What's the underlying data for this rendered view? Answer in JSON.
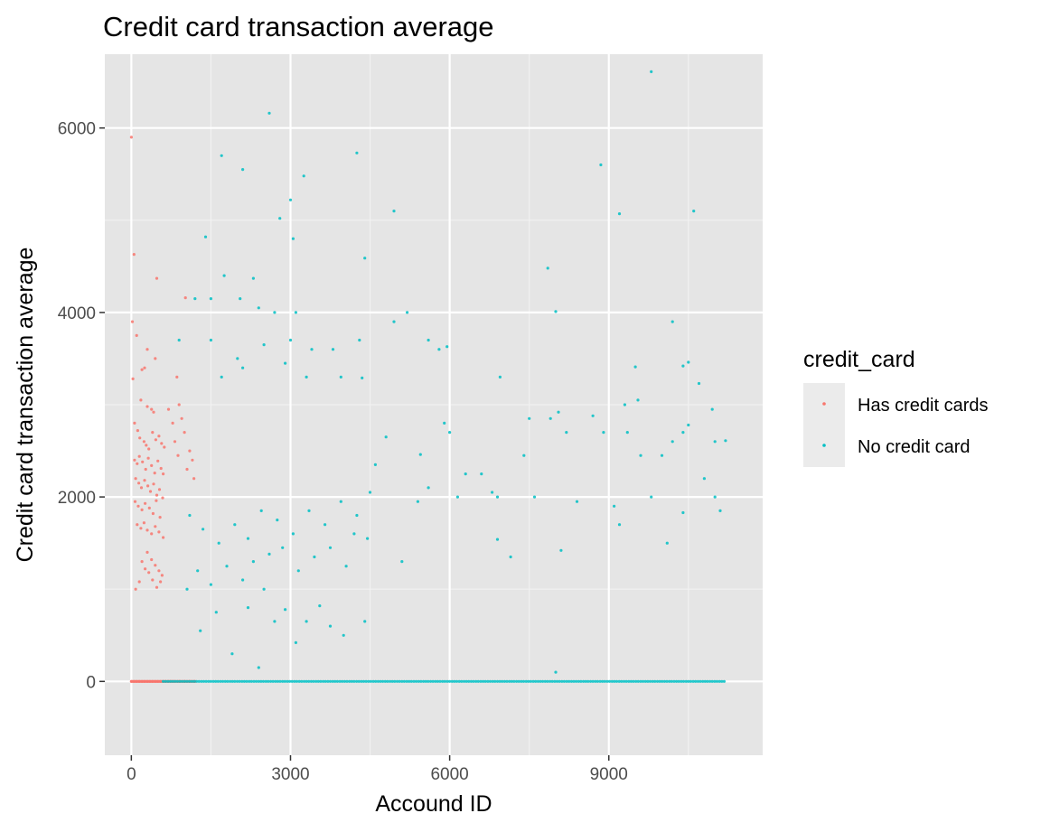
{
  "colors": {
    "panel_background": "#e5e5e5",
    "grid_major": "#ffffff",
    "grid_minor": "#f2f2f2",
    "legend_key_background": "#ebebeb",
    "has_credit_cards": "#f8766d",
    "no_credit_card": "#00bfc4"
  },
  "chart_data": {
    "type": "scatter",
    "title": "Credit card transaction average",
    "xlabel": "Accound ID",
    "ylabel": "Credit card transaction average",
    "xlim": [
      -500,
      11900
    ],
    "ylim": [
      -800,
      6800
    ],
    "x_ticks": [
      0,
      3000,
      6000,
      9000
    ],
    "x_tick_labels": [
      "0",
      "3000",
      "6000",
      "9000"
    ],
    "y_ticks": [
      0,
      2000,
      4000,
      6000
    ],
    "y_tick_labels": [
      "0",
      "2000",
      "4000",
      "6000"
    ],
    "grid": true,
    "legend": {
      "title": "credit_card",
      "placement": "right",
      "entries": [
        "Has credit cards",
        "No credit card"
      ]
    },
    "series": [
      {
        "name": "Has credit cards",
        "color": "#f8766d",
        "points": [
          [
            0,
            5900
          ],
          [
            50,
            4630
          ],
          [
            480,
            4370
          ],
          [
            20,
            3900
          ],
          [
            100,
            3750
          ],
          [
            300,
            3600
          ],
          [
            450,
            3500
          ],
          [
            30,
            3280
          ],
          [
            200,
            3380
          ],
          [
            250,
            3400
          ],
          [
            180,
            3050
          ],
          [
            300,
            2980
          ],
          [
            380,
            2950
          ],
          [
            420,
            2920
          ],
          [
            60,
            2800
          ],
          [
            120,
            2720
          ],
          [
            160,
            2640
          ],
          [
            240,
            2600
          ],
          [
            280,
            2560
          ],
          [
            330,
            2520
          ],
          [
            400,
            2700
          ],
          [
            460,
            2620
          ],
          [
            520,
            2660
          ],
          [
            570,
            2580
          ],
          [
            620,
            2540
          ],
          [
            60,
            2400
          ],
          [
            110,
            2360
          ],
          [
            150,
            2440
          ],
          [
            210,
            2380
          ],
          [
            270,
            2300
          ],
          [
            320,
            2420
          ],
          [
            380,
            2340
          ],
          [
            440,
            2260
          ],
          [
            500,
            2390
          ],
          [
            560,
            2310
          ],
          [
            600,
            2250
          ],
          [
            80,
            2200
          ],
          [
            140,
            2150
          ],
          [
            190,
            2100
          ],
          [
            250,
            2180
          ],
          [
            310,
            2120
          ],
          [
            360,
            2060
          ],
          [
            420,
            2140
          ],
          [
            480,
            2020
          ],
          [
            530,
            2080
          ],
          [
            590,
            1990
          ],
          [
            70,
            1950
          ],
          [
            130,
            1900
          ],
          [
            200,
            1860
          ],
          [
            260,
            1930
          ],
          [
            340,
            1880
          ],
          [
            410,
            1820
          ],
          [
            470,
            1960
          ],
          [
            540,
            1780
          ],
          [
            110,
            1700
          ],
          [
            180,
            1660
          ],
          [
            240,
            1720
          ],
          [
            300,
            1640
          ],
          [
            380,
            1600
          ],
          [
            450,
            1680
          ],
          [
            520,
            1620
          ],
          [
            600,
            1560
          ],
          [
            300,
            1400
          ],
          [
            380,
            1320
          ],
          [
            450,
            1260
          ],
          [
            520,
            1200
          ],
          [
            580,
            1150
          ],
          [
            200,
            1300
          ],
          [
            260,
            1220
          ],
          [
            330,
            1180
          ],
          [
            400,
            1100
          ],
          [
            480,
            1020
          ],
          [
            550,
            1080
          ],
          [
            80,
            1000
          ],
          [
            150,
            1080
          ],
          [
            900,
            3000
          ],
          [
            950,
            2850
          ],
          [
            1000,
            2700
          ],
          [
            1100,
            2500
          ],
          [
            1150,
            2400
          ],
          [
            1050,
            2300
          ],
          [
            1180,
            2200
          ],
          [
            700,
            2950
          ],
          [
            780,
            2800
          ],
          [
            820,
            2600
          ],
          [
            880,
            2450
          ],
          [
            860,
            3300
          ],
          [
            1020,
            4160
          ],
          [
            0,
            0
          ],
          [
            50,
            0
          ],
          [
            100,
            0
          ],
          [
            150,
            0
          ],
          [
            200,
            0
          ],
          [
            250,
            0
          ],
          [
            300,
            0
          ],
          [
            350,
            0
          ],
          [
            400,
            0
          ],
          [
            450,
            0
          ],
          [
            500,
            0
          ],
          [
            550,
            0
          ],
          [
            600,
            0
          ],
          [
            650,
            0
          ],
          [
            700,
            0
          ],
          [
            750,
            0
          ],
          [
            800,
            0
          ],
          [
            900,
            0
          ],
          [
            1000,
            0
          ],
          [
            1100,
            0
          ],
          [
            1200,
            0
          ]
        ]
      },
      {
        "name": "No credit card",
        "color": "#00bfc4",
        "points": [
          [
            9800,
            6610
          ],
          [
            2600,
            6160
          ],
          [
            1700,
            5700
          ],
          [
            2100,
            5550
          ],
          [
            3250,
            5480
          ],
          [
            4250,
            5730
          ],
          [
            3000,
            5220
          ],
          [
            2800,
            5020
          ],
          [
            3050,
            4800
          ],
          [
            1400,
            4820
          ],
          [
            4400,
            4590
          ],
          [
            4950,
            5100
          ],
          [
            8850,
            5600
          ],
          [
            9200,
            5070
          ],
          [
            10600,
            5100
          ],
          [
            7850,
            4480
          ],
          [
            8000,
            4010
          ],
          [
            5200,
            4000
          ],
          [
            4950,
            3900
          ],
          [
            10200,
            3900
          ],
          [
            10500,
            3460
          ],
          [
            10400,
            3420
          ],
          [
            10700,
            3230
          ],
          [
            9500,
            3410
          ],
          [
            1200,
            4150
          ],
          [
            1500,
            4150
          ],
          [
            1750,
            4400
          ],
          [
            2300,
            4370
          ],
          [
            2700,
            4000
          ],
          [
            3100,
            4000
          ],
          [
            2050,
            4150
          ],
          [
            2400,
            4050
          ],
          [
            900,
            3700
          ],
          [
            1500,
            3700
          ],
          [
            2000,
            3500
          ],
          [
            2500,
            3650
          ],
          [
            3000,
            3700
          ],
          [
            3400,
            3600
          ],
          [
            3800,
            3600
          ],
          [
            4300,
            3700
          ],
          [
            2900,
            3450
          ],
          [
            2100,
            3400
          ],
          [
            1700,
            3300
          ],
          [
            3300,
            3300
          ],
          [
            3950,
            3300
          ],
          [
            4350,
            3290
          ],
          [
            5600,
            3700
          ],
          [
            5800,
            3600
          ],
          [
            5950,
            3630
          ],
          [
            6950,
            3300
          ],
          [
            7500,
            2850
          ],
          [
            7900,
            2850
          ],
          [
            8050,
            2920
          ],
          [
            8200,
            2700
          ],
          [
            8700,
            2880
          ],
          [
            8900,
            2700
          ],
          [
            9300,
            3000
          ],
          [
            9350,
            2700
          ],
          [
            9550,
            3050
          ],
          [
            10000,
            2450
          ],
          [
            10200,
            2600
          ],
          [
            10400,
            2700
          ],
          [
            10500,
            2780
          ],
          [
            10950,
            2950
          ],
          [
            11000,
            2600
          ],
          [
            11200,
            2610
          ],
          [
            9800,
            2000
          ],
          [
            10100,
            1500
          ],
          [
            10400,
            1830
          ],
          [
            11000,
            2000
          ],
          [
            11100,
            1850
          ],
          [
            10800,
            2200
          ],
          [
            9600,
            2450
          ],
          [
            9100,
            1900
          ],
          [
            9200,
            1700
          ],
          [
            8400,
            1950
          ],
          [
            8100,
            1420
          ],
          [
            7600,
            2000
          ],
          [
            7400,
            2450
          ],
          [
            6900,
            2000
          ],
          [
            6800,
            2050
          ],
          [
            6600,
            2250
          ],
          [
            6300,
            2250
          ],
          [
            6150,
            2000
          ],
          [
            6000,
            2700
          ],
          [
            5900,
            2800
          ],
          [
            5600,
            2100
          ],
          [
            5400,
            1950
          ],
          [
            5450,
            2460
          ],
          [
            5100,
            1300
          ],
          [
            6900,
            1540
          ],
          [
            7150,
            1350
          ],
          [
            4800,
            2650
          ],
          [
            4600,
            2350
          ],
          [
            4500,
            2050
          ],
          [
            4450,
            1550
          ],
          [
            4400,
            650
          ],
          [
            3750,
            600
          ],
          [
            3300,
            650
          ],
          [
            2700,
            650
          ],
          [
            2500,
            1000
          ],
          [
            2200,
            800
          ],
          [
            1900,
            300
          ],
          [
            2400,
            150
          ],
          [
            8000,
            100
          ],
          [
            1300,
            550
          ],
          [
            1600,
            750
          ],
          [
            2900,
            780
          ],
          [
            3100,
            420
          ],
          [
            3550,
            820
          ],
          [
            4000,
            500
          ],
          [
            1050,
            1000
          ],
          [
            1250,
            1200
          ],
          [
            1500,
            1050
          ],
          [
            1800,
            1250
          ],
          [
            2100,
            1100
          ],
          [
            2300,
            1300
          ],
          [
            2600,
            1380
          ],
          [
            2850,
            1450
          ],
          [
            3150,
            1200
          ],
          [
            3450,
            1350
          ],
          [
            3750,
            1450
          ],
          [
            4050,
            1250
          ],
          [
            4200,
            1600
          ],
          [
            1100,
            1800
          ],
          [
            1350,
            1650
          ],
          [
            1650,
            1500
          ],
          [
            1950,
            1700
          ],
          [
            2200,
            1550
          ],
          [
            2450,
            1850
          ],
          [
            2750,
            1750
          ],
          [
            3050,
            1600
          ],
          [
            3350,
            1850
          ],
          [
            3650,
            1700
          ],
          [
            3950,
            1950
          ],
          [
            4250,
            1800
          ]
        ]
      }
    ]
  }
}
